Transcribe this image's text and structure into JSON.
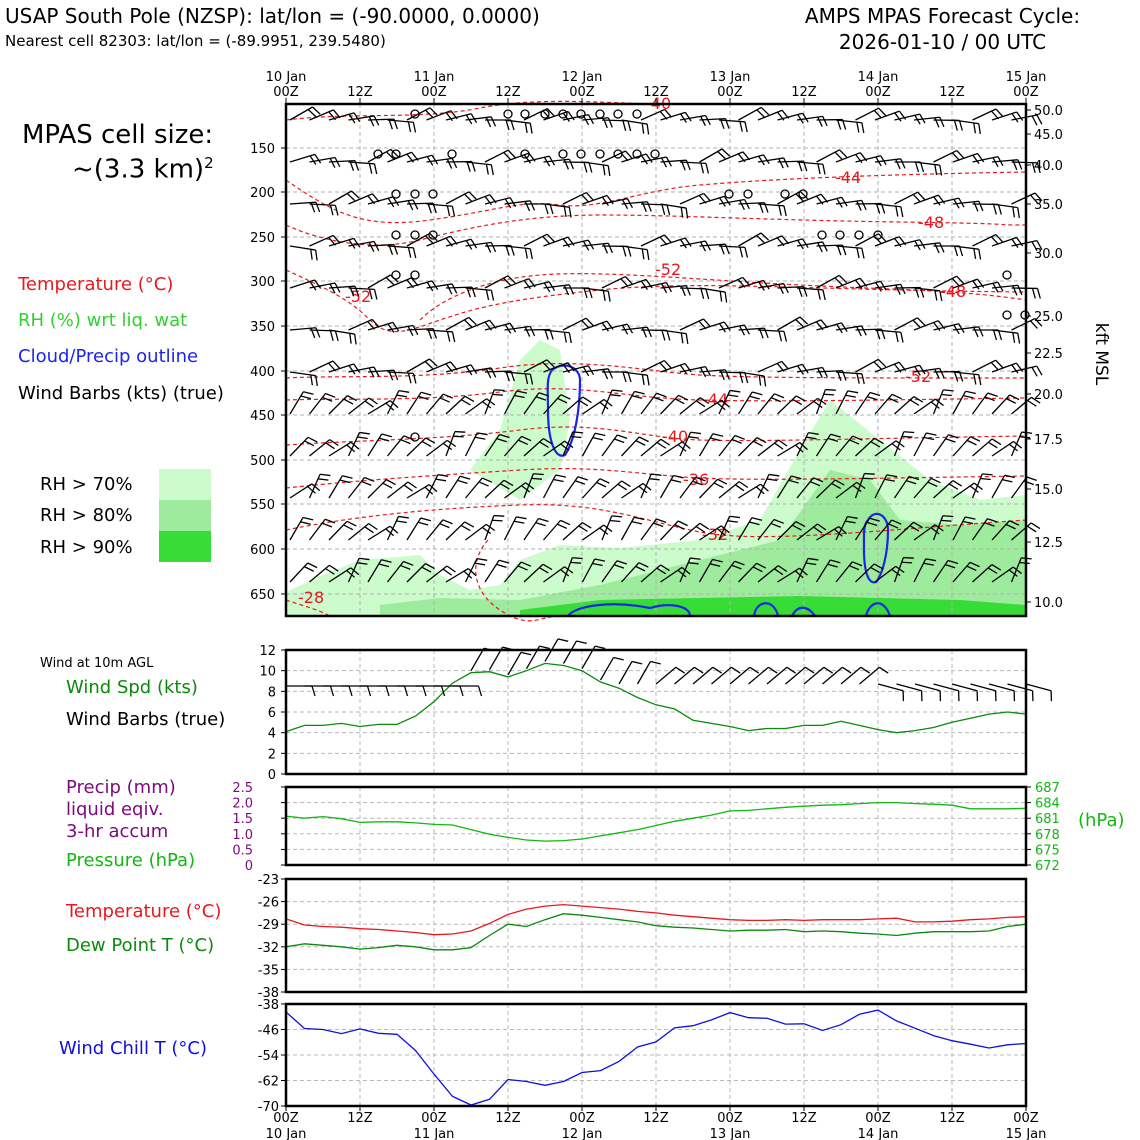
{
  "header": {
    "title": "USAP South Pole (NZSP): lat/lon = (-90.0000, 0.0000)",
    "subtitle": "Nearest cell 82303: lat/lon = (-89.9951, 239.5480)",
    "cycle_title": "AMPS MPAS Forecast Cycle:",
    "cycle_value": "2026-01-10 / 00 UTC"
  },
  "legend": {
    "cell_size_label": "MPAS cell size:",
    "cell_size_value": "~(3.3 km)",
    "cell_size_exp": "2",
    "temperature": "Temperature (°C)",
    "rh": "RH (%) wrt liq. wat",
    "cloud": "Cloud/Precip outline",
    "wind": "Wind Barbs (kts) (true)",
    "rh70": "RH > 70%",
    "rh80": "RH > 80%",
    "rh90": "RH > 90%"
  },
  "colors": {
    "temperature": "#e8191e",
    "rh": "#2fd22f",
    "cloud": "#1c24e8",
    "rh70": "#ccfbcc",
    "rh80": "#9eeb9e",
    "rh90": "#37dc37",
    "wind_spd": "#0b8a0b",
    "precip": "#7a0a7e",
    "pressure": "#11b811",
    "dewpoint": "#0b8a0b",
    "windchill": "#1010e0"
  },
  "panel_labels": {
    "wind10m": "Wind at 10m AGL",
    "wind_spd": "Wind Spd (kts)",
    "wind_barbs": "Wind Barbs (true)",
    "precip1": "Precip (mm)",
    "precip2": "liquid eqiv.",
    "precip3": "3-hr accum",
    "pressure": "Pressure (hPa)",
    "pressure_unit": "(hPa)",
    "temperature": "Temperature (°C)",
    "dewpoint": "Dew Point T (°C)",
    "windchill": "Wind Chill T (°C)",
    "kft": "kft MSL"
  },
  "chart_data": [
    {
      "type": "contour",
      "id": "time-height",
      "xaxis_top": [
        {
          "top": "10 Jan",
          "bottom": "00Z"
        },
        {
          "top": "",
          "bottom": "12Z"
        },
        {
          "top": "11 Jan",
          "bottom": "00Z"
        },
        {
          "top": "",
          "bottom": "12Z"
        },
        {
          "top": "12 Jan",
          "bottom": "00Z"
        },
        {
          "top": "",
          "bottom": "12Z"
        },
        {
          "top": "13 Jan",
          "bottom": "00Z"
        },
        {
          "top": "",
          "bottom": "12Z"
        },
        {
          "top": "14 Jan",
          "bottom": "00Z"
        },
        {
          "top": "",
          "bottom": "12Z"
        },
        {
          "top": "15 Jan",
          "bottom": "00Z"
        }
      ],
      "xlim_hours": [
        0,
        120
      ],
      "pressure_ticks": [
        "150",
        "200",
        "250",
        "300",
        "350",
        "400",
        "450",
        "500",
        "550",
        "600",
        "650"
      ],
      "kft_ticks": [
        "50.0",
        "45.0",
        "40.0",
        "35.0",
        "30.0",
        "25.0",
        "22.5",
        "20.0",
        "17.5",
        "15.0",
        "12.5",
        "10.0"
      ],
      "temperature_contour_labels": [
        "-40",
        "-44",
        "-48",
        "-52",
        "-52",
        "-48",
        "-52",
        "-44",
        "-40",
        "-36",
        "-32",
        "-28",
        "-28"
      ]
    },
    {
      "type": "line",
      "id": "wind-speed",
      "ylim": [
        0,
        12
      ],
      "yticks": [
        "0",
        "2",
        "4",
        "6",
        "8",
        "10",
        "12"
      ],
      "hours": [
        0,
        3,
        6,
        9,
        12,
        15,
        18,
        21,
        24,
        27,
        30,
        33,
        36,
        39,
        42,
        45,
        48,
        51,
        54,
        57,
        60,
        63,
        66,
        69,
        72,
        75,
        78,
        81,
        84,
        87,
        90,
        93,
        96,
        99,
        102,
        105,
        108,
        111,
        114,
        117,
        120
      ],
      "values": [
        4.1,
        4.7,
        4.7,
        4.9,
        4.6,
        4.8,
        4.8,
        5.6,
        7.0,
        8.8,
        9.8,
        9.9,
        9.4,
        10.0,
        10.7,
        10.5,
        10.0,
        8.9,
        8.3,
        7.4,
        6.7,
        6.3,
        5.2,
        4.9,
        4.6,
        4.2,
        4.4,
        4.4,
        4.7,
        4.7,
        5.1,
        4.7,
        4.3,
        4.0,
        4.2,
        4.5,
        5.0,
        5.4,
        5.8,
        6.0,
        5.8
      ],
      "barb_label": "Wind Barbs (true)"
    },
    {
      "type": "line",
      "id": "precip-pressure",
      "ylim_left": [
        0,
        2.5
      ],
      "yticks_left": [
        "0",
        "0.5",
        "1.0",
        "1.5",
        "2.0",
        "2.5"
      ],
      "ylim_right": [
        672,
        687
      ],
      "yticks_right": [
        "672",
        "675",
        "678",
        "681",
        "684",
        "687"
      ],
      "hours": [
        0,
        3,
        6,
        9,
        12,
        15,
        18,
        21,
        24,
        27,
        30,
        33,
        36,
        39,
        42,
        45,
        48,
        51,
        54,
        57,
        60,
        63,
        66,
        69,
        72,
        75,
        78,
        81,
        84,
        87,
        90,
        93,
        96,
        99,
        102,
        105,
        108,
        111,
        114,
        117,
        120
      ],
      "pressure": [
        681.4,
        681.0,
        681.3,
        680.9,
        680.2,
        680.3,
        680.3,
        680.1,
        679.8,
        679.7,
        678.8,
        677.9,
        677.3,
        676.8,
        676.6,
        676.7,
        677.0,
        677.6,
        678.2,
        678.8,
        679.6,
        680.4,
        681.0,
        681.6,
        682.4,
        682.5,
        682.8,
        683.1,
        683.3,
        683.5,
        683.6,
        683.8,
        684.0,
        684.0,
        683.8,
        683.7,
        683.5,
        682.8,
        682.8,
        682.8,
        682.9
      ],
      "precip": [
        0,
        0,
        0,
        0,
        0,
        0,
        0,
        0,
        0,
        0,
        0,
        0,
        0,
        0,
        0,
        0,
        0,
        0,
        0,
        0,
        0,
        0,
        0,
        0,
        0,
        0,
        0,
        0,
        0,
        0,
        0,
        0,
        0,
        0,
        0,
        0,
        0,
        0,
        0,
        0,
        0
      ]
    },
    {
      "type": "line",
      "id": "temp-dew",
      "ylim": [
        -38,
        -23
      ],
      "yticks": [
        "-23",
        "-26",
        "-29",
        "-32",
        "-35",
        "-38"
      ],
      "hours": [
        0,
        3,
        6,
        9,
        12,
        15,
        18,
        21,
        24,
        27,
        30,
        33,
        36,
        39,
        42,
        45,
        48,
        51,
        54,
        57,
        60,
        63,
        66,
        69,
        72,
        75,
        78,
        81,
        84,
        87,
        90,
        93,
        96,
        99,
        102,
        105,
        108,
        111,
        114,
        117,
        120
      ],
      "series": [
        {
          "name": "Temperature",
          "values": [
            -28.3,
            -29.1,
            -29.3,
            -29.4,
            -29.6,
            -29.7,
            -29.9,
            -30.1,
            -30.4,
            -30.3,
            -29.9,
            -28.9,
            -27.7,
            -27.0,
            -26.6,
            -26.4,
            -26.6,
            -26.8,
            -27.0,
            -27.3,
            -27.5,
            -27.8,
            -28.0,
            -28.2,
            -28.4,
            -28.5,
            -28.5,
            -28.4,
            -28.5,
            -28.4,
            -28.4,
            -28.4,
            -28.3,
            -28.2,
            -28.7,
            -28.7,
            -28.6,
            -28.4,
            -28.3,
            -28.1,
            -28.0
          ]
        },
        {
          "name": "Dew Point",
          "values": [
            -32.0,
            -31.6,
            -31.8,
            -32.0,
            -32.3,
            -32.1,
            -31.8,
            -32.0,
            -32.4,
            -32.4,
            -32.1,
            -30.5,
            -29.0,
            -29.3,
            -28.4,
            -27.6,
            -27.8,
            -28.1,
            -28.4,
            -28.7,
            -29.2,
            -29.4,
            -29.5,
            -29.7,
            -29.9,
            -29.8,
            -29.8,
            -29.7,
            -30.0,
            -29.9,
            -30.0,
            -30.2,
            -30.3,
            -30.5,
            -30.2,
            -30.0,
            -30.0,
            -30.0,
            -29.9,
            -29.3,
            -29.0
          ]
        }
      ]
    },
    {
      "type": "line",
      "id": "wind-chill",
      "ylim": [
        -70,
        -38
      ],
      "yticks": [
        "-38",
        "-46",
        "-54",
        "-62",
        "-70"
      ],
      "xticks": [
        {
          "top": "00Z",
          "bottom": "10 Jan"
        },
        {
          "top": "12Z",
          "bottom": ""
        },
        {
          "top": "00Z",
          "bottom": "11 Jan"
        },
        {
          "top": "12Z",
          "bottom": ""
        },
        {
          "top": "00Z",
          "bottom": "12 Jan"
        },
        {
          "top": "12Z",
          "bottom": ""
        },
        {
          "top": "00Z",
          "bottom": "13 Jan"
        },
        {
          "top": "12Z",
          "bottom": ""
        },
        {
          "top": "00Z",
          "bottom": "14 Jan"
        },
        {
          "top": "12Z",
          "bottom": ""
        },
        {
          "top": "00Z",
          "bottom": "15 Jan"
        }
      ],
      "hours": [
        0,
        3,
        6,
        9,
        12,
        15,
        18,
        21,
        24,
        27,
        30,
        33,
        36,
        39,
        42,
        45,
        48,
        51,
        54,
        57,
        60,
        63,
        66,
        69,
        72,
        75,
        78,
        81,
        84,
        87,
        90,
        93,
        96,
        99,
        102,
        105,
        108,
        111,
        114,
        117,
        120
      ],
      "values": [
        -40.5,
        -45.7,
        -46.0,
        -47.3,
        -45.8,
        -47.2,
        -47.5,
        -52.6,
        -60.0,
        -67.0,
        -69.7,
        -67.9,
        -61.7,
        -62.3,
        -63.5,
        -62.3,
        -59.5,
        -58.9,
        -56.0,
        -51.5,
        -49.9,
        -45.5,
        -44.8,
        -43.0,
        -40.7,
        -42.3,
        -42.5,
        -44.3,
        -44.2,
        -46.3,
        -44.5,
        -41.2,
        -39.9,
        -43.3,
        -45.6,
        -47.9,
        -49.5,
        -50.6,
        -51.8,
        -50.8,
        -50.4
      ]
    }
  ]
}
